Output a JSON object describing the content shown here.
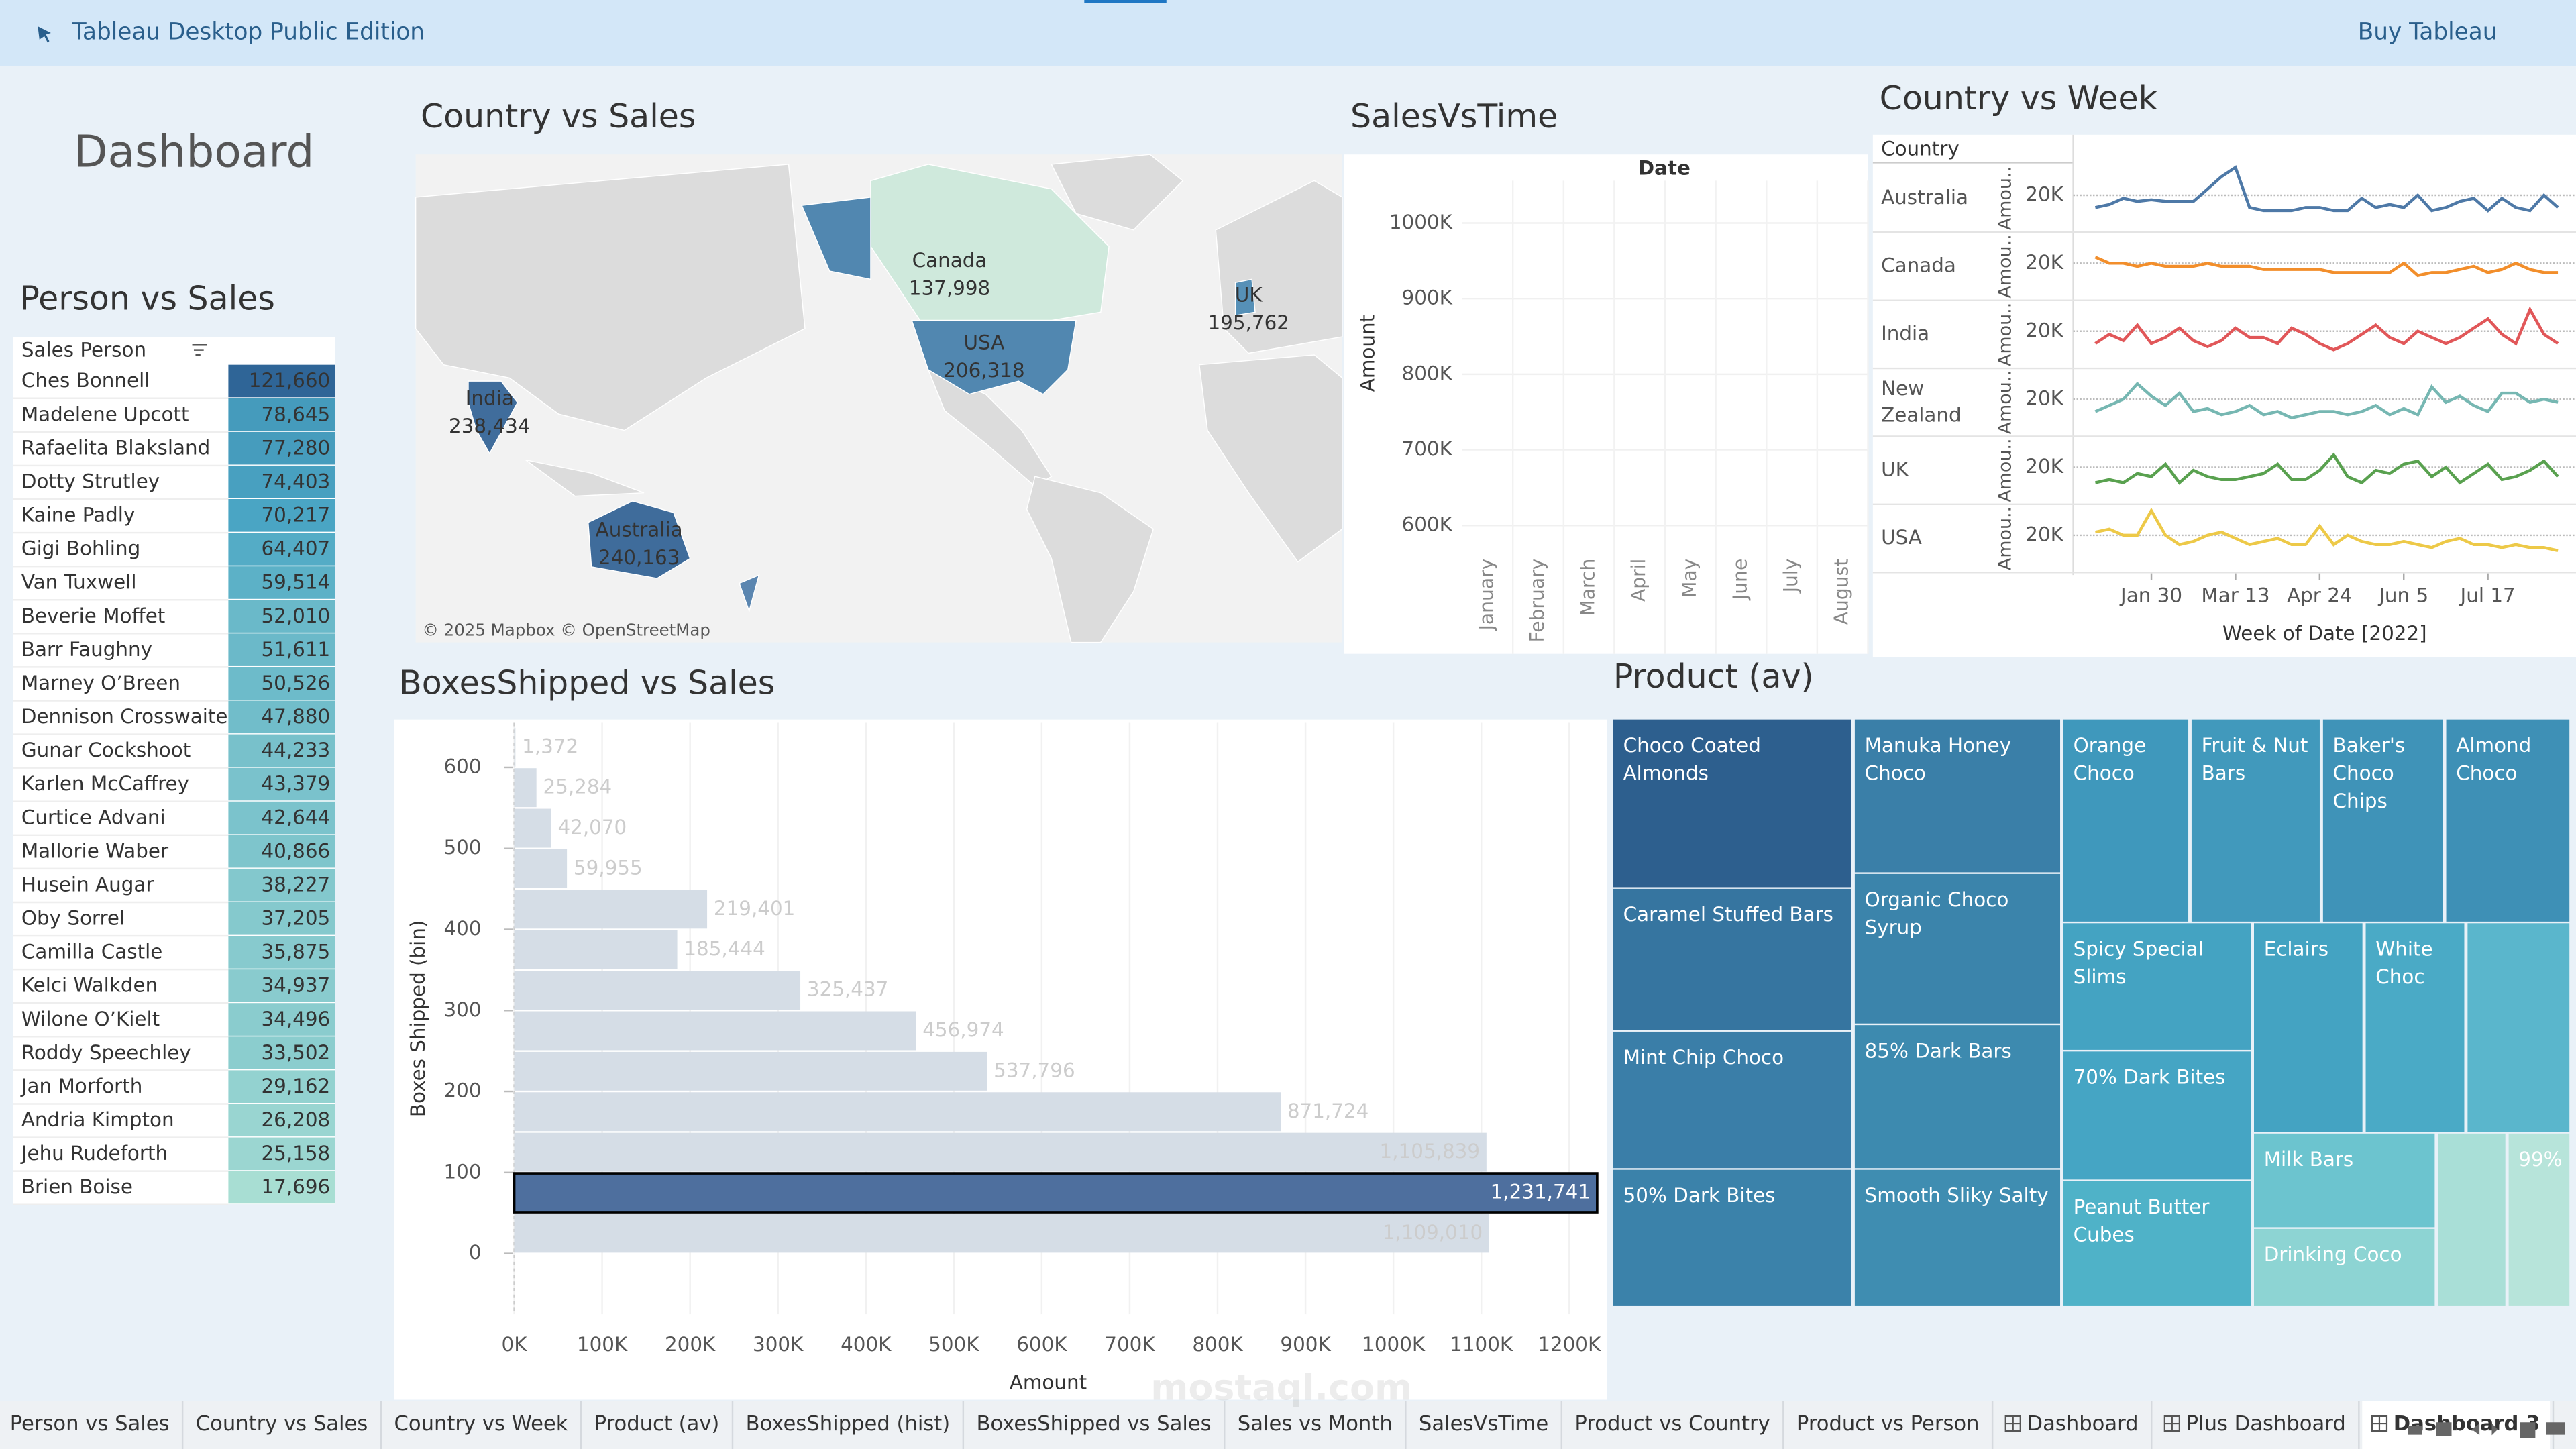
{
  "header": {
    "app_title": "Tableau Desktop Public Edition",
    "buy": "Buy Tableau"
  },
  "dashboard_title": "Dashboard",
  "person_vs_sales": {
    "title": "Person vs Sales",
    "column_header": "Sales Person",
    "names": [
      "Ches Bonnell",
      "Madelene Upcott",
      "Rafaelita Blaksland",
      "Dotty Strutley",
      "Kaine Padly",
      "Gigi Bohling",
      "Van Tuxwell",
      "Beverie Moffet",
      "Barr Faughny",
      "Marney O’Breen",
      "Dennison Crosswaite",
      "Gunar Cockshoot",
      "Karlen McCaffrey",
      "Curtice Advani",
      "Mallorie Waber",
      "Husein Augar",
      "Oby Sorrel",
      "Camilla Castle",
      "Kelci Walkden",
      "Wilone O’Kielt",
      "Roddy Speechley",
      "Jan Morforth",
      "Andria Kimpton",
      "Jehu Rudeforth",
      "Brien Boise"
    ],
    "values": [
      121660,
      78645,
      77280,
      74403,
      70217,
      64407,
      59514,
      52010,
      51611,
      50526,
      47880,
      44233,
      43379,
      42644,
      40866,
      38227,
      37205,
      35875,
      34937,
      34496,
      33502,
      29162,
      26208,
      25158,
      17696
    ],
    "value_labels": [
      "121,660",
      "78,645",
      "77,280",
      "74,403",
      "70,217",
      "64,407",
      "59,514",
      "52,010",
      "51,611",
      "50,526",
      "47,880",
      "44,233",
      "43,379",
      "42,644",
      "40,866",
      "38,227",
      "37,205",
      "35,875",
      "34,937",
      "34,496",
      "33,502",
      "29,162",
      "26,208",
      "25,158",
      "17,696"
    ]
  },
  "country_vs_sales": {
    "title": "Country vs Sales",
    "countries": [
      "Canada",
      "USA",
      "UK",
      "India",
      "Australia"
    ],
    "values": [
      137998,
      206318,
      195762,
      238434,
      240163
    ],
    "value_labels": [
      "137,998",
      "206,318",
      "195,762",
      "238,434",
      "240,163"
    ],
    "attribution": "© 2025 Mapbox © OpenStreetMap"
  },
  "sales_vs_time": {
    "type": "line",
    "title": "SalesVsTime",
    "column_header": "Date",
    "y_label": "Amount",
    "categories": [
      "January",
      "February",
      "March",
      "April",
      "May",
      "June",
      "July",
      "August"
    ],
    "ylim": [
      567000,
      1056000
    ],
    "yticks": [
      {
        "value": 600000,
        "label": "600K"
      },
      {
        "value": 700000,
        "label": "700K"
      },
      {
        "value": 800000,
        "label": "800K"
      },
      {
        "value": 900000,
        "label": "900K"
      },
      {
        "value": 1000000,
        "label": "1000K"
      }
    ]
  },
  "country_vs_week": {
    "type": "line",
    "title": "Country vs Week",
    "row_header": "Country",
    "y_label": "Amou..",
    "x_label": "Week of Date [2022]",
    "x": [
      "2022-01-02",
      "2022-01-09",
      "2022-01-16",
      "2022-01-23",
      "2022-01-30",
      "2022-02-06",
      "2022-02-13",
      "2022-02-20",
      "2022-02-27",
      "2022-03-06",
      "2022-03-13",
      "2022-03-20",
      "2022-03-27",
      "2022-04-03",
      "2022-04-10",
      "2022-04-17",
      "2022-04-24",
      "2022-05-01",
      "2022-05-08",
      "2022-05-15",
      "2022-05-22",
      "2022-05-29",
      "2022-06-05",
      "2022-06-12",
      "2022-06-19",
      "2022-06-26",
      "2022-07-03",
      "2022-07-10",
      "2022-07-17",
      "2022-07-24",
      "2022-07-31",
      "2022-08-07",
      "2022-08-14",
      "2022-08-21"
    ],
    "xlim": [
      "2021-12-22",
      "2022-08-30"
    ],
    "xticks": [
      {
        "value": "2022-01-30",
        "label": "Jan 30"
      },
      {
        "value": "2022-03-13",
        "label": "Mar 13"
      },
      {
        "value": "2022-04-24",
        "label": "Apr 24"
      },
      {
        "value": "2022-06-05",
        "label": "Jun 5"
      },
      {
        "value": "2022-07-17",
        "label": "Jul 17"
      }
    ],
    "ylim": [
      8000,
      30000
    ],
    "yticks": [
      {
        "value": 20000,
        "label": "20K"
      }
    ],
    "series": [
      {
        "name": "Australia",
        "color": "#4e79a7",
        "values": [
          16000,
          17000,
          19000,
          18000,
          18500,
          18000,
          18000,
          18000,
          22000,
          26000,
          29000,
          16000,
          15000,
          15000,
          15000,
          16000,
          16000,
          15000,
          15000,
          19000,
          16000,
          17000,
          16000,
          20000,
          15000,
          16000,
          18000,
          19000,
          15000,
          19000,
          16000,
          15000,
          20000,
          16000
        ]
      },
      {
        "name": "Canada",
        "color": "#f28e2b",
        "values": [
          22000,
          20000,
          20000,
          19000,
          20000,
          19000,
          19000,
          19000,
          20000,
          19000,
          19000,
          19000,
          18000,
          18000,
          18000,
          18000,
          18000,
          17000,
          17000,
          17000,
          17000,
          17000,
          20000,
          16000,
          17000,
          17000,
          18000,
          19000,
          17000,
          18000,
          20000,
          18000,
          17000,
          17000
        ]
      },
      {
        "name": "India",
        "color": "#e15759",
        "values": [
          16000,
          19000,
          17000,
          22000,
          16000,
          18000,
          21000,
          17000,
          15000,
          17000,
          21000,
          18000,
          18000,
          16000,
          21000,
          19000,
          16000,
          14000,
          16000,
          19000,
          22000,
          18000,
          16000,
          20000,
          18000,
          16000,
          18000,
          21000,
          24000,
          19000,
          16000,
          27000,
          19000,
          16000
        ]
      },
      {
        "name": "New Zealand",
        "color": "#76b7b2",
        "values": [
          16000,
          18000,
          20000,
          25000,
          21000,
          18000,
          22000,
          16000,
          17000,
          15000,
          16000,
          18000,
          15000,
          16000,
          14000,
          15000,
          16000,
          16000,
          15000,
          16000,
          18000,
          15000,
          17000,
          15000,
          24000,
          19000,
          21000,
          18000,
          16000,
          22000,
          22000,
          19000,
          20000,
          19000
        ]
      },
      {
        "name": "UK",
        "color": "#59a14f",
        "values": [
          15000,
          16000,
          15000,
          18000,
          17000,
          21000,
          15000,
          19000,
          17000,
          16000,
          16000,
          17000,
          18000,
          21000,
          16000,
          16000,
          19000,
          24000,
          17000,
          15000,
          19000,
          18000,
          21000,
          22000,
          17000,
          20000,
          15000,
          18000,
          21000,
          16000,
          17000,
          19000,
          22000,
          17000
        ]
      },
      {
        "name": "USA",
        "color": "#edc948",
        "values": [
          21000,
          22000,
          20000,
          20000,
          28000,
          20000,
          17000,
          18000,
          20000,
          21000,
          19000,
          17000,
          18000,
          19000,
          17000,
          17000,
          23000,
          17000,
          20000,
          18000,
          17000,
          17000,
          18000,
          17000,
          16000,
          18000,
          19000,
          17000,
          17000,
          16000,
          17000,
          16000,
          16000,
          15000
        ]
      }
    ]
  },
  "boxes_vs_sales": {
    "type": "histogram",
    "orientation": "horizontal",
    "title": "BoxesShipped vs Sales",
    "y_label": "Boxes Shipped (bin)",
    "x_label": "Amount",
    "bins": [
      0,
      50,
      100,
      150,
      200,
      250,
      300,
      350,
      400,
      450,
      500,
      550,
      600,
      650
    ],
    "values": [
      1109010,
      1231741,
      1105839,
      871724,
      537796,
      456974,
      325437,
      185444,
      219401,
      59955,
      42070,
      25284,
      1372
    ],
    "value_labels": [
      "1,109,010",
      "1,231,741",
      "1,105,839",
      "871,724",
      "537,796",
      "456,974",
      "325,437",
      "185,444",
      "219,401",
      "59,955",
      "42,070",
      "25,284",
      "1,372"
    ],
    "color": "#d5dde6",
    "highlight_color": "#4e6f9e",
    "highlight_index": 1,
    "xlim": [
      0,
      1237000
    ],
    "ylim": [
      -75,
      655
    ],
    "xticks": [
      {
        "value": 0,
        "label": "0K"
      },
      {
        "value": 100000,
        "label": "100K"
      },
      {
        "value": 200000,
        "label": "200K"
      },
      {
        "value": 300000,
        "label": "300K"
      },
      {
        "value": 400000,
        "label": "400K"
      },
      {
        "value": 500000,
        "label": "500K"
      },
      {
        "value": 600000,
        "label": "600K"
      },
      {
        "value": 700000,
        "label": "700K"
      },
      {
        "value": 800000,
        "label": "800K"
      },
      {
        "value": 900000,
        "label": "900K"
      },
      {
        "value": 1000000,
        "label": "1000K"
      },
      {
        "value": 1100000,
        "label": "1100K"
      },
      {
        "value": 1200000,
        "label": "1200K"
      }
    ],
    "yticks": [
      0,
      100,
      200,
      300,
      400,
      500,
      600
    ]
  },
  "product_av": {
    "title": "Product (av)",
    "products": [
      "Choco Coated Almonds",
      "Caramel Stuffed Bars",
      "Mint Chip Choco",
      "50% Dark Bites",
      "Manuka Honey Choco",
      "Organic Choco Syrup",
      "85% Dark Bars",
      "Smooth Sliky Salty",
      "Orange Choco",
      "Fruit & Nut Bars",
      "Baker's Choco Chips",
      "Almond Choco",
      "Spicy Special Slims",
      "70% Dark Bites",
      "Peanut Butter Cubes",
      "Eclairs",
      "White Choc",
      null,
      "Milk Bars",
      "Drinking Coco",
      null,
      "99%"
    ],
    "colors": [
      "#2d5f8e",
      "#3675a0",
      "#3a7ea8",
      "#3b82aa",
      "#3a7fa8",
      "#3b84ab",
      "#3d8aaf",
      "#3f8db1",
      "#3f98bc",
      "#4199bc",
      "#3f93b8",
      "#3e90b6",
      "#44a3c2",
      "#45a5c4",
      "#4fb2c8",
      "#44a3c2",
      "#4aaac6",
      "#5ab6cc",
      "#6cc4cf",
      "#8dd4d3",
      "#a9dfd7",
      "#b7e4da"
    ]
  },
  "tabs": [
    "Person vs Sales",
    "Country vs Sales",
    "Country vs Week",
    "Product (av)",
    "BoxesShipped (hist)",
    "BoxesShipped vs Sales",
    "Sales vs Month",
    "SalesVsTime",
    "Product vs Country",
    "Product vs Person",
    "Dashboard",
    "Plus Dashboard",
    "Dashboard 3"
  ],
  "active_tab": 12,
  "watermark": "mostaql.com"
}
